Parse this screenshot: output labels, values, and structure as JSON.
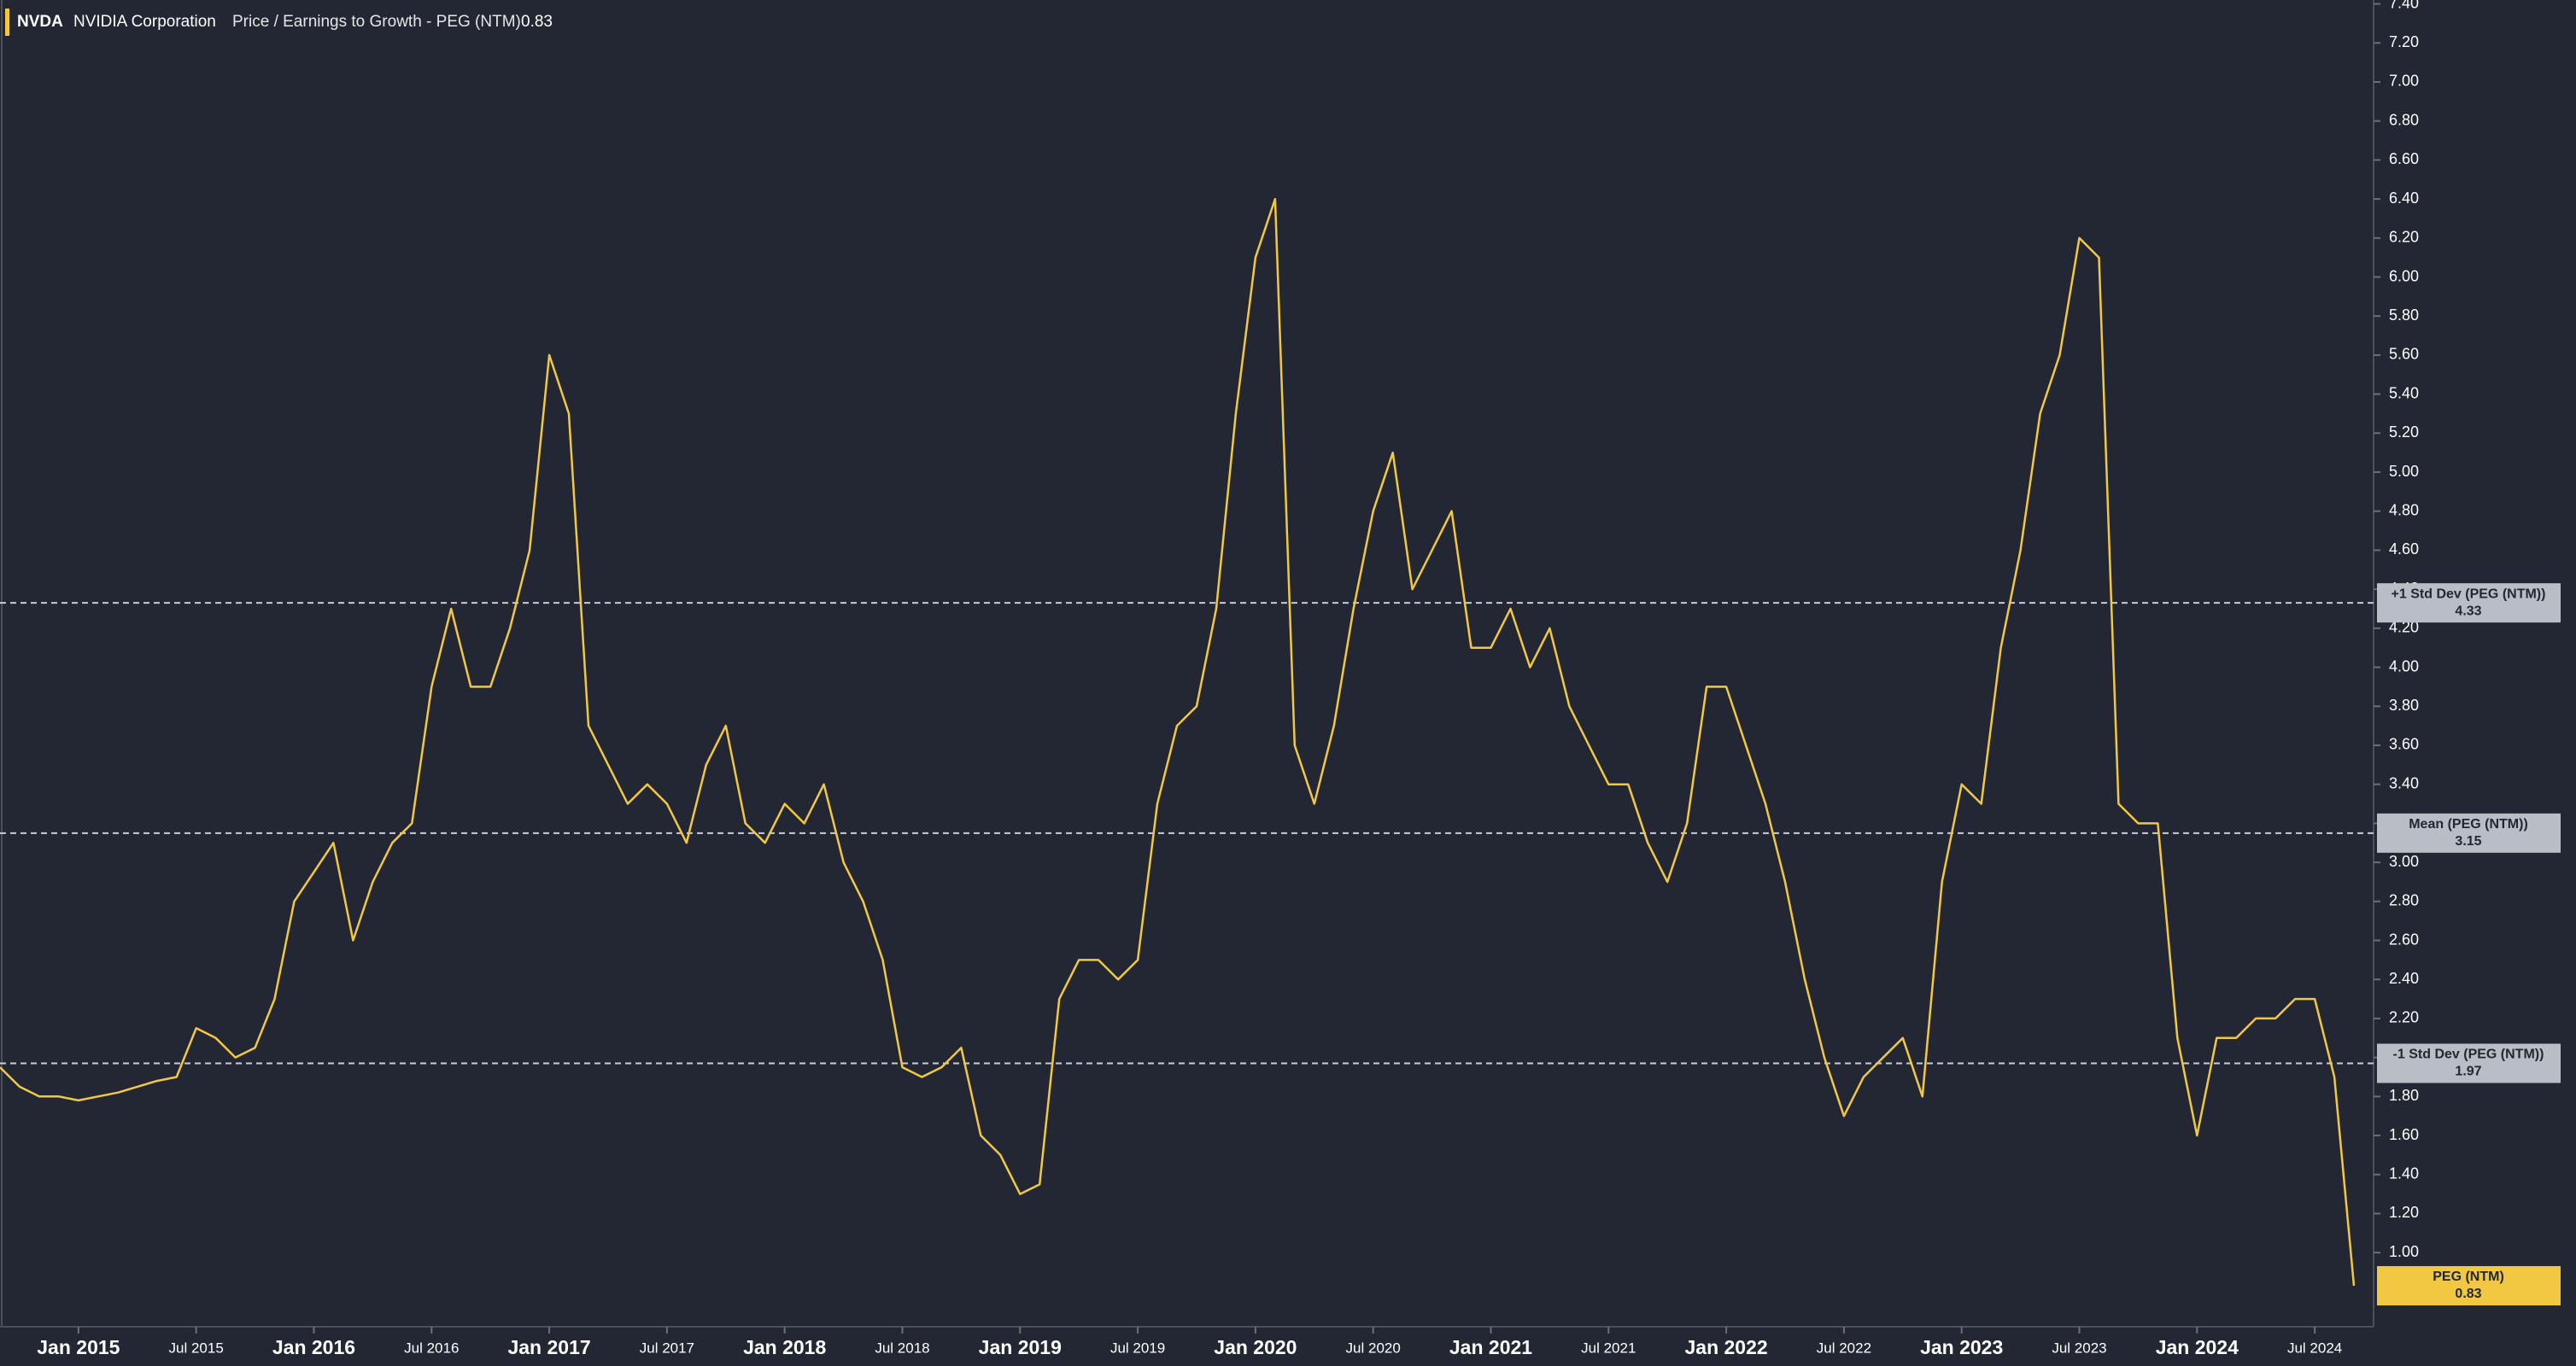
{
  "header": {
    "ticker": "NVDA",
    "company": "NVIDIA Corporation",
    "metric": "Price / Earnings to Growth - PEG (NTM)",
    "value": 0.83
  },
  "chart_data": {
    "type": "line",
    "x": [
      "2014-09",
      "2014-10",
      "2014-11",
      "2014-12",
      "2015-01",
      "2015-02",
      "2015-03",
      "2015-04",
      "2015-05",
      "2015-06",
      "2015-07",
      "2015-08",
      "2015-09",
      "2015-10",
      "2015-11",
      "2015-12",
      "2016-01",
      "2016-02",
      "2016-03",
      "2016-04",
      "2016-05",
      "2016-06",
      "2016-07",
      "2016-08",
      "2016-09",
      "2016-10",
      "2016-11",
      "2016-12",
      "2017-01",
      "2017-02",
      "2017-03",
      "2017-04",
      "2017-05",
      "2017-06",
      "2017-07",
      "2017-08",
      "2017-09",
      "2017-10",
      "2017-11",
      "2017-12",
      "2018-01",
      "2018-02",
      "2018-03",
      "2018-04",
      "2018-05",
      "2018-06",
      "2018-07",
      "2018-08",
      "2018-09",
      "2018-10",
      "2018-11",
      "2018-12",
      "2019-01",
      "2019-02",
      "2019-03",
      "2019-04",
      "2019-05",
      "2019-06",
      "2019-07",
      "2019-08",
      "2019-09",
      "2019-10",
      "2019-11",
      "2019-12",
      "2020-01",
      "2020-02",
      "2020-03",
      "2020-04",
      "2020-05",
      "2020-06",
      "2020-07",
      "2020-08",
      "2020-09",
      "2020-10",
      "2020-11",
      "2020-12",
      "2021-01",
      "2021-02",
      "2021-03",
      "2021-04",
      "2021-05",
      "2021-06",
      "2021-07",
      "2021-08",
      "2021-09",
      "2021-10",
      "2021-11",
      "2021-12",
      "2022-01",
      "2022-02",
      "2022-03",
      "2022-04",
      "2022-05",
      "2022-06",
      "2022-07",
      "2022-08",
      "2022-09",
      "2022-10",
      "2022-11",
      "2022-12",
      "2023-01",
      "2023-02",
      "2023-03",
      "2023-04",
      "2023-05",
      "2023-06",
      "2023-07",
      "2023-08",
      "2023-09",
      "2023-10",
      "2023-11",
      "2023-12",
      "2024-01",
      "2024-02",
      "2024-03",
      "2024-04",
      "2024-05",
      "2024-06",
      "2024-07",
      "2024-08",
      "2024-09"
    ],
    "series": [
      {
        "name": "PEG (NTM)",
        "color": "#f2c843",
        "values": [
          1.95,
          1.85,
          1.8,
          1.8,
          1.78,
          1.8,
          1.82,
          1.85,
          1.88,
          1.9,
          2.15,
          2.1,
          2.0,
          2.05,
          2.3,
          2.8,
          2.95,
          3.1,
          2.6,
          2.9,
          3.1,
          3.2,
          3.9,
          4.3,
          3.9,
          3.9,
          4.2,
          4.6,
          5.6,
          5.3,
          3.7,
          3.5,
          3.3,
          3.4,
          3.3,
          3.1,
          3.5,
          3.7,
          3.2,
          3.1,
          3.3,
          3.2,
          3.4,
          3.0,
          2.8,
          2.5,
          1.95,
          1.9,
          1.95,
          2.05,
          1.6,
          1.5,
          1.3,
          1.35,
          2.3,
          2.5,
          2.5,
          2.4,
          2.5,
          3.3,
          3.7,
          3.8,
          4.3,
          5.3,
          6.1,
          6.4,
          3.6,
          3.3,
          3.7,
          4.3,
          4.8,
          5.1,
          4.4,
          4.6,
          4.8,
          4.1,
          4.1,
          4.3,
          4.0,
          4.2,
          3.8,
          3.6,
          3.4,
          3.4,
          3.1,
          2.9,
          3.2,
          3.9,
          3.9,
          3.6,
          3.3,
          2.9,
          2.4,
          2.0,
          1.7,
          1.9,
          2.0,
          2.1,
          1.8,
          2.9,
          3.4,
          3.3,
          4.1,
          4.6,
          5.3,
          5.6,
          6.2,
          6.1,
          3.3,
          3.2,
          3.2,
          2.1,
          1.6,
          2.1,
          2.1,
          2.2,
          2.2,
          2.3,
          2.3,
          1.9,
          0.83
        ]
      }
    ],
    "reference_lines": [
      {
        "label": "+1 Std Dev (PEG (NTM))",
        "value": 4.33
      },
      {
        "label": "Mean (PEG (NTM))",
        "value": 3.15
      },
      {
        "label": "-1 Std Dev (PEG (NTM))",
        "value": 1.97
      }
    ],
    "xlim": [
      "2014-09",
      "2024-10"
    ],
    "xticks": [
      {
        "value": "2015-01",
        "label": "Jan 2015"
      },
      {
        "value": "2015-07",
        "label": "Jul 2015"
      },
      {
        "value": "2016-01",
        "label": "Jan 2016"
      },
      {
        "value": "2016-07",
        "label": "Jul 2016"
      },
      {
        "value": "2017-01",
        "label": "Jan 2017"
      },
      {
        "value": "2017-07",
        "label": "Jul 2017"
      },
      {
        "value": "2018-01",
        "label": "Jan 2018"
      },
      {
        "value": "2018-07",
        "label": "Jul 2018"
      },
      {
        "value": "2019-01",
        "label": "Jan 2019"
      },
      {
        "value": "2019-07",
        "label": "Jul 2019"
      },
      {
        "value": "2020-01",
        "label": "Jan 2020"
      },
      {
        "value": "2020-07",
        "label": "Jul 2020"
      },
      {
        "value": "2021-01",
        "label": "Jan 2021"
      },
      {
        "value": "2021-07",
        "label": "Jul 2021"
      },
      {
        "value": "2022-01",
        "label": "Jan 2022"
      },
      {
        "value": "2022-07",
        "label": "Jul 2022"
      },
      {
        "value": "2023-01",
        "label": "Jan 2023"
      },
      {
        "value": "2023-07",
        "label": "Jul 2023"
      },
      {
        "value": "2024-01",
        "label": "Jan 2024"
      },
      {
        "value": "2024-07",
        "label": "Jul 2024"
      }
    ],
    "ylim": [
      0.62,
      7.42
    ],
    "yticks": [
      {
        "value": 1.0,
        "label": "1.00"
      },
      {
        "value": 1.2,
        "label": "1.20"
      },
      {
        "value": 1.4,
        "label": "1.40"
      },
      {
        "value": 1.6,
        "label": "1.60"
      },
      {
        "value": 1.8,
        "label": "1.80"
      },
      {
        "value": 2.0,
        "label": "2.00"
      },
      {
        "value": 2.2,
        "label": "2.20"
      },
      {
        "value": 2.4,
        "label": "2.40"
      },
      {
        "value": 2.6,
        "label": "2.60"
      },
      {
        "value": 2.8,
        "label": "2.80"
      },
      {
        "value": 3.0,
        "label": "3.00"
      },
      {
        "value": 3.2,
        "label": "3.20"
      },
      {
        "value": 3.4,
        "label": "3.40"
      },
      {
        "value": 3.6,
        "label": "3.60"
      },
      {
        "value": 3.8,
        "label": "3.80"
      },
      {
        "value": 4.0,
        "label": "4.00"
      },
      {
        "value": 4.2,
        "label": "4.20"
      },
      {
        "value": 4.4,
        "label": "4.40"
      },
      {
        "value": 4.6,
        "label": "4.60"
      },
      {
        "value": 4.8,
        "label": "4.80"
      },
      {
        "value": 5.0,
        "label": "5.00"
      },
      {
        "value": 5.2,
        "label": "5.20"
      },
      {
        "value": 5.4,
        "label": "5.40"
      },
      {
        "value": 5.6,
        "label": "5.60"
      },
      {
        "value": 5.8,
        "label": "5.80"
      },
      {
        "value": 6.0,
        "label": "6.00"
      },
      {
        "value": 6.2,
        "label": "6.20"
      },
      {
        "value": 6.4,
        "label": "6.40"
      },
      {
        "value": 6.6,
        "label": "6.60"
      },
      {
        "value": 6.8,
        "label": "6.80"
      },
      {
        "value": 7.0,
        "label": "7.00"
      },
      {
        "value": 7.2,
        "label": "7.20"
      },
      {
        "value": 7.4,
        "label": "7.40"
      }
    ]
  }
}
